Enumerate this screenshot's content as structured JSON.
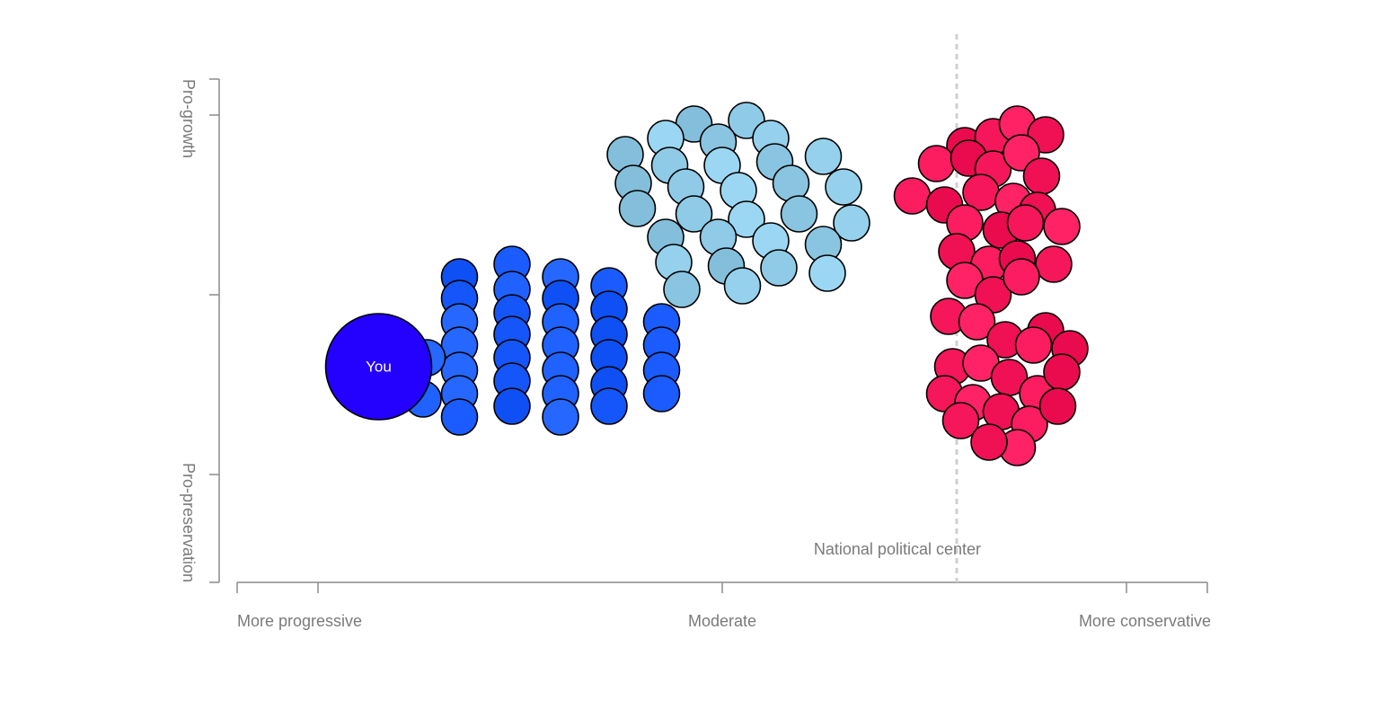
{
  "chart_data": {
    "type": "scatter",
    "x_axis": {
      "tick_labels": [
        "More progressive",
        "Moderate",
        "More conservative"
      ],
      "range": [
        -1,
        1
      ]
    },
    "y_axis": {
      "tick_labels": [
        "Pro-growth",
        "Pro-preservation"
      ],
      "range": [
        -1,
        1
      ]
    },
    "reference_line": {
      "label": "National political center",
      "x": 0.58
    },
    "you": {
      "label": "You",
      "x": -0.85,
      "y": -0.4,
      "color": "#2400ff"
    },
    "series": [
      {
        "color": "#1a5cff",
        "points": [
          [
            -0.65,
            0.1
          ],
          [
            -0.52,
            0.17
          ],
          [
            -0.4,
            0.1
          ],
          [
            -0.65,
            -0.02
          ],
          [
            -0.52,
            0.03
          ],
          [
            -0.4,
            -0.02
          ],
          [
            -0.28,
            0.05
          ],
          [
            -0.65,
            -0.15
          ],
          [
            -0.52,
            -0.1
          ],
          [
            -0.4,
            -0.15
          ],
          [
            -0.28,
            -0.08
          ],
          [
            -0.15,
            -0.15
          ],
          [
            -0.65,
            -0.28
          ],
          [
            -0.52,
            -0.22
          ],
          [
            -0.4,
            -0.28
          ],
          [
            -0.28,
            -0.22
          ],
          [
            -0.15,
            -0.28
          ],
          [
            -0.65,
            -0.42
          ],
          [
            -0.52,
            -0.35
          ],
          [
            -0.4,
            -0.42
          ],
          [
            -0.28,
            -0.35
          ],
          [
            -0.15,
            -0.42
          ],
          [
            -0.65,
            -0.55
          ],
          [
            -0.52,
            -0.48
          ],
          [
            -0.4,
            -0.55
          ],
          [
            -0.28,
            -0.5
          ],
          [
            -0.15,
            -0.55
          ],
          [
            -0.73,
            -0.35
          ],
          [
            -0.8,
            -0.48
          ],
          [
            -0.74,
            -0.58
          ],
          [
            -0.52,
            -0.62
          ],
          [
            -0.65,
            -0.68
          ],
          [
            -0.4,
            -0.68
          ],
          [
            -0.28,
            -0.62
          ]
        ]
      },
      {
        "color": "#8fcbe6",
        "points": [
          [
            -0.07,
            0.95
          ],
          [
            0.06,
            0.97
          ],
          [
            -0.14,
            0.87
          ],
          [
            -0.01,
            0.85
          ],
          [
            0.12,
            0.87
          ],
          [
            -0.24,
            0.78
          ],
          [
            -0.13,
            0.72
          ],
          [
            0.0,
            0.72
          ],
          [
            0.13,
            0.74
          ],
          [
            0.25,
            0.77
          ],
          [
            -0.22,
            0.62
          ],
          [
            -0.09,
            0.6
          ],
          [
            0.04,
            0.58
          ],
          [
            0.17,
            0.62
          ],
          [
            0.3,
            0.6
          ],
          [
            -0.21,
            0.48
          ],
          [
            -0.07,
            0.45
          ],
          [
            0.06,
            0.42
          ],
          [
            0.19,
            0.45
          ],
          [
            0.32,
            0.4
          ],
          [
            -0.14,
            0.32
          ],
          [
            -0.01,
            0.32
          ],
          [
            0.12,
            0.3
          ],
          [
            0.25,
            0.28
          ],
          [
            -0.12,
            0.18
          ],
          [
            0.01,
            0.16
          ],
          [
            0.14,
            0.15
          ],
          [
            0.26,
            0.12
          ],
          [
            -0.1,
            0.03
          ],
          [
            0.05,
            0.05
          ]
        ]
      },
      {
        "color": "#f5175a",
        "points": [
          [
            0.6,
            0.83
          ],
          [
            0.67,
            0.88
          ],
          [
            0.73,
            0.95
          ],
          [
            0.8,
            0.89
          ],
          [
            0.53,
            0.73
          ],
          [
            0.61,
            0.76
          ],
          [
            0.67,
            0.7
          ],
          [
            0.74,
            0.79
          ],
          [
            0.79,
            0.66
          ],
          [
            0.47,
            0.55
          ],
          [
            0.55,
            0.5
          ],
          [
            0.64,
            0.57
          ],
          [
            0.72,
            0.52
          ],
          [
            0.78,
            0.47
          ],
          [
            0.6,
            0.4
          ],
          [
            0.69,
            0.36
          ],
          [
            0.75,
            0.4
          ],
          [
            0.84,
            0.38
          ],
          [
            0.58,
            0.24
          ],
          [
            0.66,
            0.17
          ],
          [
            0.73,
            0.2
          ],
          [
            0.82,
            0.17
          ],
          [
            0.6,
            0.08
          ],
          [
            0.67,
            0.0
          ],
          [
            0.74,
            0.1
          ],
          [
            0.8,
            -0.2
          ],
          [
            0.56,
            -0.12
          ],
          [
            0.63,
            -0.15
          ],
          [
            0.7,
            -0.25
          ],
          [
            0.77,
            -0.28
          ],
          [
            0.86,
            -0.3
          ],
          [
            0.57,
            -0.4
          ],
          [
            0.64,
            -0.38
          ],
          [
            0.71,
            -0.46
          ],
          [
            0.78,
            -0.55
          ],
          [
            0.84,
            -0.43
          ],
          [
            0.55,
            -0.55
          ],
          [
            0.62,
            -0.6
          ],
          [
            0.69,
            -0.65
          ],
          [
            0.76,
            -0.72
          ],
          [
            0.83,
            -0.62
          ],
          [
            0.59,
            -0.7
          ],
          [
            0.73,
            -0.85
          ],
          [
            0.66,
            -0.82
          ]
        ]
      }
    ]
  }
}
